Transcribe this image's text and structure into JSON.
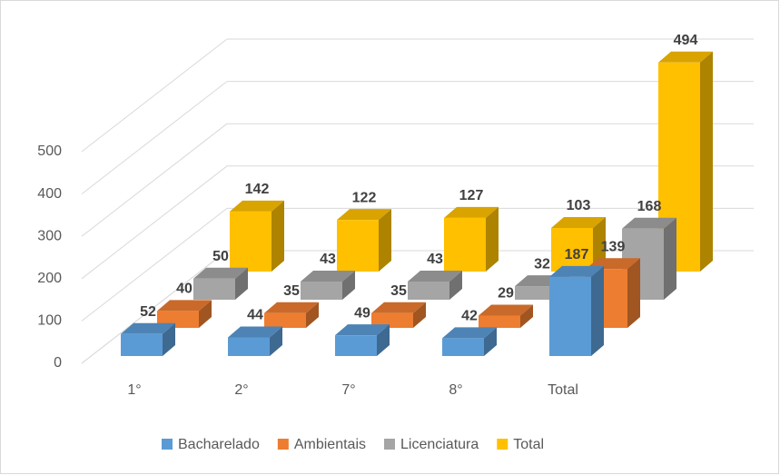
{
  "chart_data": {
    "type": "bar3d",
    "categories": [
      "1°",
      "2°",
      "7°",
      "8°",
      "Total"
    ],
    "series": [
      {
        "name": "Bacharelado",
        "color": "#5b9bd5",
        "values": [
          52,
          44,
          49,
          42,
          187
        ]
      },
      {
        "name": "Ambientais",
        "color": "#ed7d31",
        "values": [
          40,
          35,
          35,
          29,
          139
        ]
      },
      {
        "name": "Licenciatura",
        "color": "#a5a5a5",
        "values": [
          50,
          43,
          43,
          32,
          168
        ]
      },
      {
        "name": "Total",
        "color": "#ffc000",
        "values": [
          142,
          122,
          127,
          103,
          494
        ]
      }
    ],
    "ylim": [
      0,
      500
    ],
    "yticks": [
      0,
      100,
      200,
      300,
      400,
      500
    ],
    "grid": true,
    "legend": "bottom"
  }
}
